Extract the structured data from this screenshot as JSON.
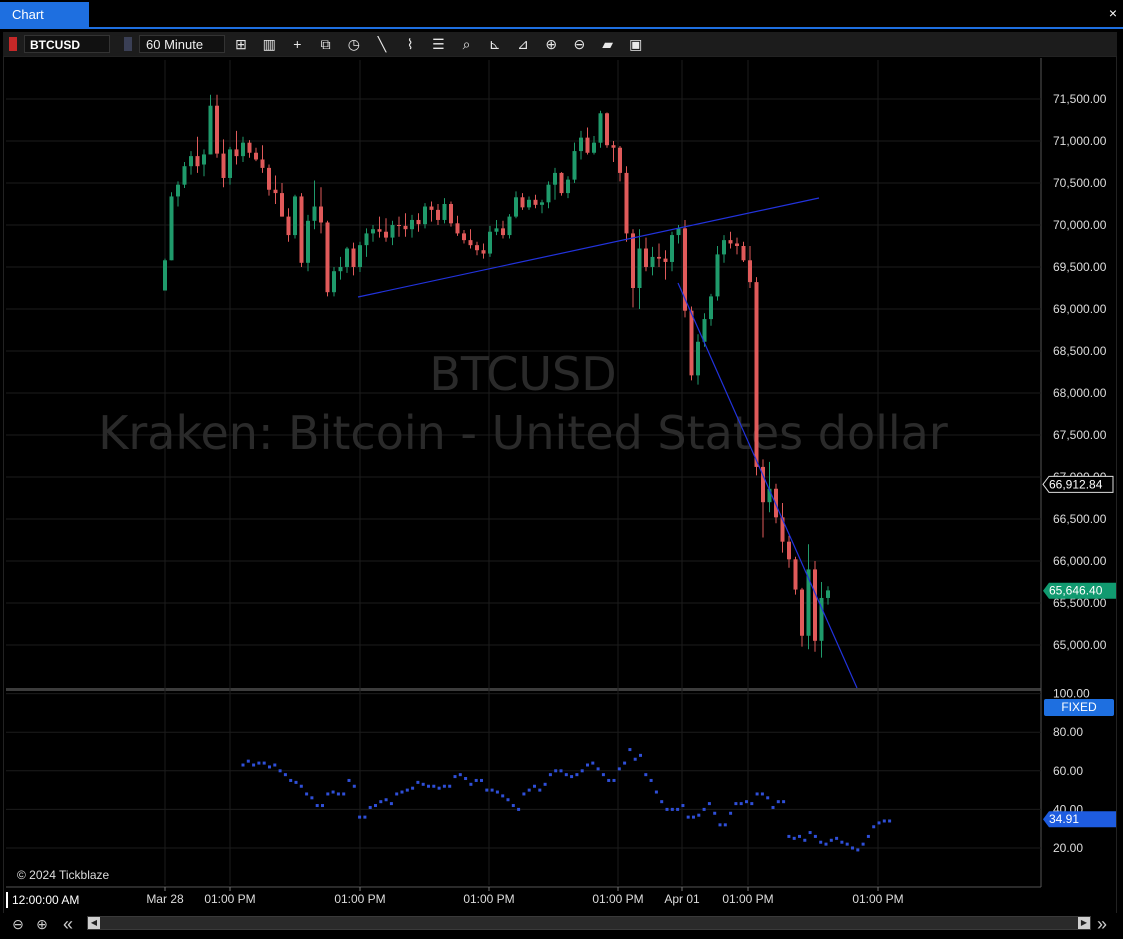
{
  "window": {
    "tab_title": "Chart",
    "close_glyph": "×"
  },
  "toolbar": {
    "symbol": "BTCUSD",
    "symbol_color": "#c62828",
    "timeframe": "60 Minute",
    "icons": [
      {
        "name": "bar-type-icon",
        "glyph": "⊞"
      },
      {
        "name": "indicators-icon",
        "glyph": "▥"
      },
      {
        "name": "crosshair-icon",
        "glyph": "+"
      },
      {
        "name": "compare-icon",
        "glyph": "⧉"
      },
      {
        "name": "clock-icon",
        "glyph": "◷"
      },
      {
        "name": "line-tool-icon",
        "glyph": "╲"
      },
      {
        "name": "trend-tool-icon",
        "glyph": "⌇"
      },
      {
        "name": "list-icon",
        "glyph": "☰"
      },
      {
        "name": "search-icon",
        "glyph": "⌕"
      },
      {
        "name": "axis-icon",
        "glyph": "⊾"
      },
      {
        "name": "axis-scale-icon",
        "glyph": "⊿"
      },
      {
        "name": "zoom-in-icon",
        "glyph": "⊕"
      },
      {
        "name": "zoom-out-icon",
        "glyph": "⊖"
      },
      {
        "name": "open-folder-icon",
        "glyph": "▰"
      },
      {
        "name": "save-icon",
        "glyph": "▣"
      }
    ]
  },
  "watermark": {
    "symbol": "BTCUSD",
    "description": "Kraken: Bitcoin - United States dollar"
  },
  "colors": {
    "up": "#1f9a6b",
    "down": "#e05a5a",
    "trendline": "#2233dd",
    "indicator": "#2f4fd8",
    "accent": "#1e6fe0"
  },
  "chart_data": [
    {
      "type": "candlestick",
      "title": "",
      "ylim": [
        64500,
        72000
      ],
      "y_ticks": [
        65000,
        65500,
        66000,
        66500,
        67000,
        67500,
        68000,
        68500,
        69000,
        69500,
        70000,
        70500,
        71000,
        71500
      ],
      "y_tick_labels": [
        "65,000.00",
        "65,500.00",
        "66,000.00",
        "66,500.00",
        "67,000.00",
        "67,500.00",
        "68,000.00",
        "68,500.00",
        "69,000.00",
        "69,500.00",
        "70,000.00",
        "70,500.00",
        "71,000.00",
        "71,500.00"
      ],
      "x_tick_labels": [
        "Mar 28",
        "01:00 PM",
        "01:00 PM",
        "01:00 PM",
        "01:00 PM",
        "Apr 01",
        "01:00 PM",
        "01:00 PM"
      ],
      "crosshair_price": "66,912.84",
      "last_price": "65,646.40",
      "ohlc": [
        [
          69220,
          69600,
          69220,
          69580
        ],
        [
          69580,
          70390,
          69580,
          70340
        ],
        [
          70340,
          70520,
          70220,
          70480
        ],
        [
          70480,
          70750,
          70440,
          70700
        ],
        [
          70700,
          70880,
          70600,
          70820
        ],
        [
          70820,
          71050,
          70620,
          70700
        ],
        [
          70720,
          70900,
          70580,
          70840
        ],
        [
          70840,
          71550,
          70840,
          71420
        ],
        [
          71420,
          71550,
          70800,
          70850
        ],
        [
          70850,
          71020,
          70450,
          70560
        ],
        [
          70560,
          70930,
          70480,
          70900
        ],
        [
          70900,
          71120,
          70720,
          70820
        ],
        [
          70820,
          71050,
          70750,
          70980
        ],
        [
          70980,
          71010,
          70800,
          70860
        ],
        [
          70860,
          70920,
          70760,
          70780
        ],
        [
          70780,
          70950,
          70620,
          70680
        ],
        [
          70680,
          70720,
          70350,
          70420
        ],
        [
          70420,
          70590,
          70250,
          70380
        ],
        [
          70380,
          70500,
          70100,
          70100
        ],
        [
          70100,
          70200,
          69800,
          69880
        ],
        [
          69880,
          70360,
          69840,
          70340
        ],
        [
          70340,
          70380,
          69500,
          69550
        ],
        [
          69550,
          70120,
          69450,
          70050
        ],
        [
          70050,
          70530,
          69950,
          70220
        ],
        [
          70220,
          70450,
          69900,
          70030
        ],
        [
          70030,
          70050,
          69150,
          69200
        ],
        [
          69200,
          69500,
          69150,
          69450
        ],
        [
          69450,
          69620,
          69350,
          69500
        ],
        [
          69500,
          69740,
          69430,
          69720
        ],
        [
          69720,
          69790,
          69400,
          69500
        ],
        [
          69500,
          69800,
          69440,
          69760
        ],
        [
          69760,
          69960,
          69620,
          69900
        ],
        [
          69900,
          70000,
          69800,
          69950
        ],
        [
          69950,
          70100,
          69850,
          69920
        ],
        [
          69920,
          70080,
          69800,
          69850
        ],
        [
          69850,
          70050,
          69760,
          70000
        ],
        [
          70000,
          70100,
          69860,
          69990
        ],
        [
          69990,
          70140,
          69860,
          69950
        ],
        [
          69950,
          70120,
          69850,
          70060
        ],
        [
          70060,
          70140,
          69920,
          70010
        ],
        [
          70010,
          70260,
          69960,
          70220
        ],
        [
          70220,
          70280,
          70040,
          70180
        ],
        [
          70180,
          70250,
          70000,
          70060
        ],
        [
          70060,
          70320,
          70020,
          70250
        ],
        [
          70250,
          70280,
          69980,
          70020
        ],
        [
          70020,
          70110,
          69870,
          69900
        ],
        [
          69900,
          69940,
          69780,
          69820
        ],
        [
          69820,
          69950,
          69720,
          69760
        ],
        [
          69760,
          69800,
          69640,
          69700
        ],
        [
          69700,
          69780,
          69600,
          69660
        ],
        [
          69660,
          69990,
          69620,
          69920
        ],
        [
          69920,
          70060,
          69880,
          69960
        ],
        [
          69960,
          70050,
          69840,
          69880
        ],
        [
          69880,
          70130,
          69840,
          70100
        ],
        [
          70100,
          70400,
          70080,
          70330
        ],
        [
          70330,
          70380,
          70180,
          70210
        ],
        [
          70210,
          70340,
          70180,
          70300
        ],
        [
          70300,
          70360,
          70200,
          70240
        ],
        [
          70240,
          70300,
          70140,
          70270
        ],
        [
          70270,
          70520,
          70200,
          70480
        ],
        [
          70480,
          70680,
          70300,
          70620
        ],
        [
          70620,
          70630,
          70350,
          70380
        ],
        [
          70380,
          70580,
          70320,
          70540
        ],
        [
          70540,
          70980,
          70500,
          70880
        ],
        [
          70880,
          71120,
          70780,
          71040
        ],
        [
          71040,
          71160,
          70840,
          70860
        ],
        [
          70860,
          71060,
          70840,
          70980
        ],
        [
          70980,
          71360,
          70920,
          71330
        ],
        [
          71330,
          71340,
          70920,
          70950
        ],
        [
          70950,
          71000,
          70750,
          70920
        ],
        [
          70920,
          70940,
          70520,
          70620
        ],
        [
          70620,
          70700,
          69800,
          69900
        ],
        [
          69900,
          69950,
          69020,
          69250
        ],
        [
          69250,
          69950,
          69000,
          69720
        ],
        [
          69720,
          69850,
          69450,
          69500
        ],
        [
          69500,
          69740,
          69400,
          69620
        ],
        [
          69620,
          69780,
          69500,
          69600
        ],
        [
          69600,
          69700,
          69350,
          69560
        ],
        [
          69560,
          69920,
          69450,
          69880
        ],
        [
          69880,
          70000,
          69780,
          69960
        ],
        [
          69960,
          70060,
          68900,
          68980
        ],
        [
          68980,
          69030,
          68150,
          68210
        ],
        [
          68210,
          68700,
          68100,
          68610
        ],
        [
          68610,
          68950,
          68550,
          68880
        ],
        [
          68880,
          69180,
          68800,
          69150
        ],
        [
          69150,
          69750,
          69100,
          69650
        ],
        [
          69650,
          69880,
          69550,
          69820
        ],
        [
          69820,
          69920,
          69720,
          69780
        ],
        [
          69780,
          69850,
          69650,
          69750
        ],
        [
          69750,
          69800,
          69560,
          69580
        ],
        [
          69580,
          69750,
          69250,
          69320
        ],
        [
          69320,
          69380,
          67020,
          67120
        ],
        [
          67120,
          67210,
          66280,
          66700
        ],
        [
          66700,
          67180,
          66580,
          66860
        ],
        [
          66860,
          66920,
          66450,
          66520
        ],
        [
          66520,
          66690,
          66100,
          66230
        ],
        [
          66230,
          66300,
          65920,
          66020
        ],
        [
          66020,
          66050,
          65600,
          65660
        ],
        [
          65660,
          65680,
          64980,
          65110
        ],
        [
          65110,
          66200,
          64950,
          65900
        ],
        [
          65900,
          66000,
          64920,
          65050
        ],
        [
          65050,
          65750,
          64850,
          65560
        ],
        [
          65560,
          65700,
          65480,
          65650
        ]
      ]
    },
    {
      "type": "scatter",
      "title": "",
      "ylim": [
        0,
        100
      ],
      "y_ticks": [
        20,
        40,
        60,
        80,
        100
      ],
      "y_tick_labels": [
        "20.00",
        "40.00",
        "60.00",
        "80.00",
        "100.00"
      ],
      "last_value_label": "34.91",
      "scale_mode": "FIXED",
      "values": [
        63,
        65,
        63,
        64,
        64,
        62,
        63,
        60,
        58,
        55,
        54,
        52,
        48,
        46,
        42,
        42,
        48,
        49,
        48,
        48,
        55,
        52,
        36,
        36,
        41,
        42,
        44,
        45,
        43,
        48,
        49,
        50,
        51,
        54,
        53,
        52,
        52,
        51,
        52,
        52,
        57,
        58,
        56,
        53,
        55,
        55,
        50,
        50,
        49,
        47,
        45,
        42,
        40,
        48,
        50,
        52,
        50,
        53,
        58,
        60,
        60,
        58,
        57,
        58,
        60,
        63,
        64,
        61,
        58,
        55,
        55,
        61,
        64,
        71,
        66,
        68,
        58,
        55,
        49,
        44,
        40,
        40,
        40,
        42,
        36,
        36,
        37,
        40,
        43,
        38,
        32,
        32,
        38,
        43,
        43,
        44,
        43,
        48,
        48,
        46,
        41,
        44,
        44,
        26,
        25,
        26,
        24,
        28,
        26,
        23,
        22,
        24,
        25,
        23,
        22,
        20,
        19,
        22,
        26,
        31,
        33,
        34,
        34
      ]
    }
  ],
  "footer": {
    "copyright": "© 2024 Tickblaze",
    "time_box": "12:00:00 AM",
    "zoom_in_glyph": "⊕",
    "zoom_out_glyph": "⊖",
    "scroll_back_glyph": "«",
    "scroll_forward_glyph": "»",
    "scroll_left_glyph": "◀",
    "scroll_right_glyph": "▶"
  }
}
